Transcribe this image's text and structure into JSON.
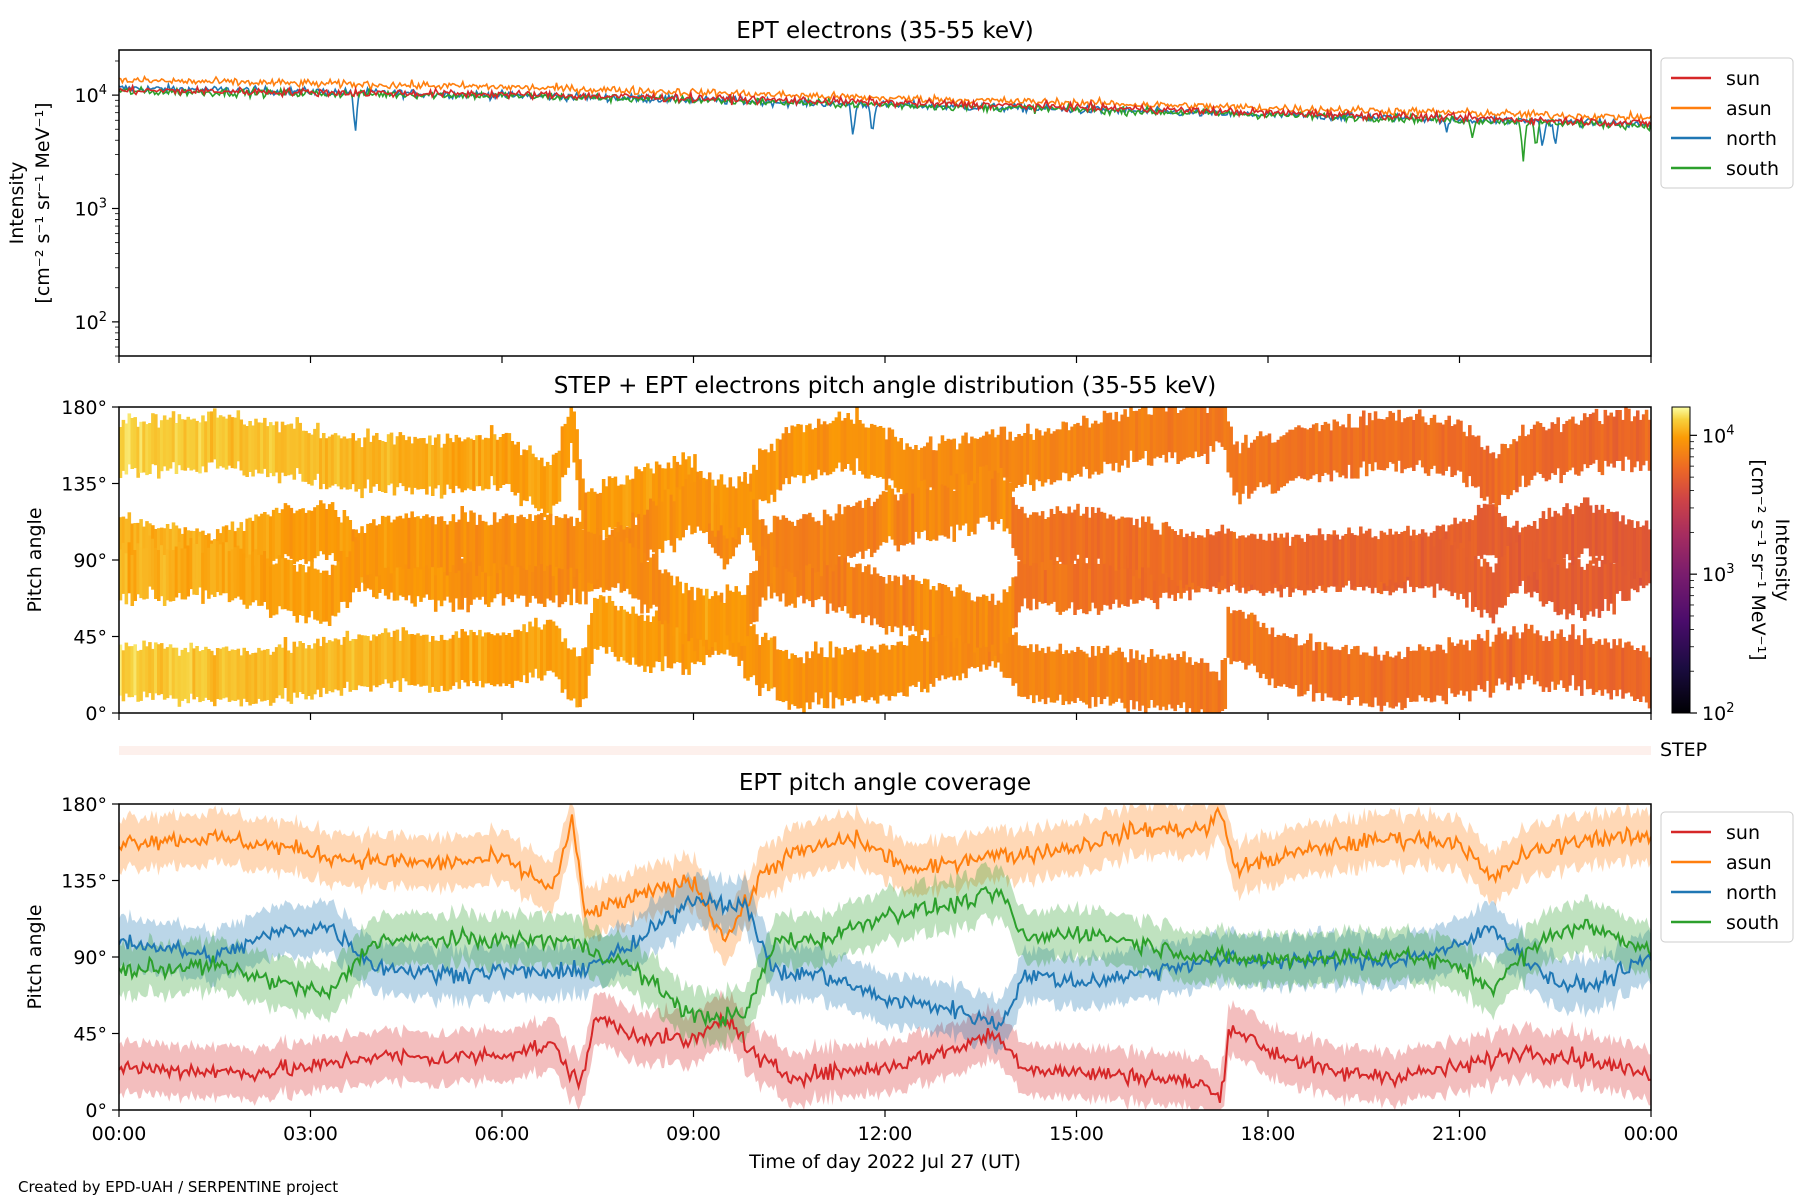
{
  "footer": "Created by EPD-UAH / SERPENTINE project",
  "colors": {
    "sun": "#d62728",
    "asun": "#ff7f0e",
    "north": "#1f77b4",
    "south": "#2ca02c"
  },
  "chart_data": [
    {
      "type": "line",
      "title": "EPT electrons (35-55 keV)",
      "ylabel_line1": "Intensity",
      "ylabel_line2": "[cm⁻² s⁻¹ sr⁻¹ MeV⁻¹]",
      "yscale": "log",
      "ylim": [
        50,
        25000
      ],
      "yticks": [
        {
          "value": 100,
          "base": "10",
          "exp": "2"
        },
        {
          "value": 1000,
          "base": "10",
          "exp": "3"
        },
        {
          "value": 10000,
          "base": "10",
          "exp": "4"
        }
      ],
      "legend": [
        "sun",
        "asun",
        "north",
        "south"
      ],
      "legend_position": "outside-right",
      "series": [
        {
          "name": "sun",
          "trend": [
            [
              0,
              11000
            ],
            [
              6,
              10200
            ],
            [
              12,
              8600
            ],
            [
              18,
              7000
            ],
            [
              24,
              5600
            ]
          ],
          "dips": []
        },
        {
          "name": "asun",
          "trend": [
            [
              0,
              13500
            ],
            [
              6,
              11800
            ],
            [
              12,
              9400
            ],
            [
              18,
              7700
            ],
            [
              24,
              6300
            ]
          ],
          "dips": []
        },
        {
          "name": "north",
          "trend": [
            [
              0,
              11500
            ],
            [
              6,
              10000
            ],
            [
              12,
              8200
            ],
            [
              18,
              6700
            ],
            [
              24,
              5500
            ]
          ],
          "dips": [
            [
              3.7,
              4200
            ],
            [
              11.5,
              4000
            ],
            [
              11.8,
              4300
            ],
            [
              20.8,
              4700
            ],
            [
              22.3,
              3300
            ],
            [
              22.5,
              3500
            ]
          ]
        },
        {
          "name": "south",
          "trend": [
            [
              0,
              10800
            ],
            [
              6,
              9900
            ],
            [
              12,
              8200
            ],
            [
              18,
              6700
            ],
            [
              24,
              5400
            ]
          ],
          "dips": [
            [
              21.2,
              4200
            ],
            [
              22.0,
              2600
            ],
            [
              22.2,
              3200
            ]
          ]
        }
      ]
    },
    {
      "type": "heatmap",
      "title": "STEP + EPT electrons pitch angle distribution (35-55 keV)",
      "ylabel": "Pitch angle",
      "ylim": [
        0,
        180
      ],
      "yticks": [
        "0°",
        "45°",
        "90°",
        "135°",
        "180°"
      ],
      "colorbar": {
        "label_line1": "Intensity",
        "label_line2": "[cm⁻² s⁻¹ sr⁻¹ MeV⁻¹]",
        "scale": "log",
        "range": [
          100,
          16000
        ],
        "colormap": "plasma-inferno",
        "ticks": [
          {
            "value": 100,
            "base": "10",
            "exp": "2"
          },
          {
            "value": 1000,
            "base": "10",
            "exp": "3"
          },
          {
            "value": 10000,
            "base": "10",
            "exp": "4"
          }
        ]
      },
      "value_trend": [
        [
          0,
          13000
        ],
        [
          6,
          10000
        ],
        [
          12,
          8500
        ],
        [
          18,
          6500
        ],
        [
          24,
          5500
        ]
      ]
    },
    {
      "type": "bar",
      "label": "STEP"
    },
    {
      "type": "area",
      "title": "EPT pitch angle coverage",
      "ylabel": "Pitch angle",
      "ylim": [
        0,
        180
      ],
      "yticks": [
        "0°",
        "45°",
        "90°",
        "135°",
        "180°"
      ],
      "xlabel": "Time of day 2022 Jul 27 (UT)",
      "xlim": [
        0,
        24
      ],
      "xticks": [
        "00:00",
        "03:00",
        "06:00",
        "09:00",
        "12:00",
        "15:00",
        "18:00",
        "21:00",
        "00:00"
      ],
      "legend": [
        "sun",
        "asun",
        "north",
        "south"
      ],
      "legend_position": "outside-right",
      "band_halfwidth_deg": 15,
      "series": [
        {
          "name": "sun",
          "points": [
            [
              0,
              25
            ],
            [
              2,
              22
            ],
            [
              3,
              25
            ],
            [
              4,
              32
            ],
            [
              5,
              30
            ],
            [
              6,
              33
            ],
            [
              6.8,
              38
            ],
            [
              7.2,
              15
            ],
            [
              7.5,
              55
            ],
            [
              8,
              45
            ],
            [
              9,
              40
            ],
            [
              9.5,
              55
            ],
            [
              10,
              30
            ],
            [
              10.5,
              20
            ],
            [
              12,
              25
            ],
            [
              13,
              35
            ],
            [
              13.7,
              45
            ],
            [
              14.2,
              25
            ],
            [
              15,
              22
            ],
            [
              16,
              20
            ],
            [
              17,
              15
            ],
            [
              17.25,
              5
            ],
            [
              17.4,
              50
            ],
            [
              18,
              35
            ],
            [
              19,
              22
            ],
            [
              20,
              20
            ],
            [
              21,
              25
            ],
            [
              22,
              35
            ],
            [
              23,
              30
            ],
            [
              24,
              20
            ]
          ]
        },
        {
          "name": "asun",
          "points": [
            [
              0,
              158
            ],
            [
              1.5,
              160
            ],
            [
              2.5,
              155
            ],
            [
              3.5,
              148
            ],
            [
              5,
              145
            ],
            [
              6,
              148
            ],
            [
              6.8,
              130
            ],
            [
              7.1,
              170
            ],
            [
              7.3,
              115
            ],
            [
              7.7,
              120
            ],
            [
              8.5,
              130
            ],
            [
              9,
              135
            ],
            [
              9.5,
              100
            ],
            [
              10.1,
              140
            ],
            [
              10.5,
              150
            ],
            [
              11.5,
              160
            ],
            [
              12.5,
              140
            ],
            [
              13.5,
              150
            ],
            [
              14.1,
              150
            ],
            [
              15,
              155
            ],
            [
              16,
              165
            ],
            [
              17,
              165
            ],
            [
              17.25,
              175
            ],
            [
              17.5,
              142
            ],
            [
              18.3,
              150
            ],
            [
              19,
              155
            ],
            [
              20,
              160
            ],
            [
              21,
              158
            ],
            [
              21.5,
              135
            ],
            [
              22,
              150
            ],
            [
              23,
              160
            ],
            [
              24,
              160
            ]
          ]
        },
        {
          "name": "north",
          "points": [
            [
              0,
              100
            ],
            [
              1.5,
              90
            ],
            [
              2.5,
              105
            ],
            [
              3.3,
              108
            ],
            [
              4,
              85
            ],
            [
              5,
              80
            ],
            [
              6,
              82
            ],
            [
              7,
              80
            ],
            [
              8,
              95
            ],
            [
              9,
              125
            ],
            [
              9.8,
              120
            ],
            [
              10.3,
              80
            ],
            [
              11,
              80
            ],
            [
              12,
              65
            ],
            [
              13,
              60
            ],
            [
              13.8,
              50
            ],
            [
              14.2,
              80
            ],
            [
              15,
              75
            ],
            [
              16,
              80
            ],
            [
              17,
              88
            ],
            [
              18,
              88
            ],
            [
              19,
              88
            ],
            [
              20,
              88
            ],
            [
              21,
              96
            ],
            [
              21.5,
              108
            ],
            [
              22,
              90
            ],
            [
              22.5,
              75
            ],
            [
              23,
              72
            ],
            [
              24,
              90
            ]
          ]
        },
        {
          "name": "south",
          "points": [
            [
              0,
              82
            ],
            [
              1.5,
              85
            ],
            [
              2.5,
              75
            ],
            [
              3.3,
              68
            ],
            [
              4,
              100
            ],
            [
              5,
              100
            ],
            [
              6,
              100
            ],
            [
              7,
              100
            ],
            [
              8,
              85
            ],
            [
              9,
              55
            ],
            [
              9.8,
              55
            ],
            [
              10.3,
              100
            ],
            [
              11,
              100
            ],
            [
              12,
              115
            ],
            [
              13,
              120
            ],
            [
              13.8,
              128
            ],
            [
              14.2,
              100
            ],
            [
              15,
              105
            ],
            [
              16,
              98
            ],
            [
              17,
              90
            ],
            [
              18,
              88
            ],
            [
              19,
              90
            ],
            [
              20,
              92
            ],
            [
              21,
              84
            ],
            [
              21.5,
              72
            ],
            [
              22,
              90
            ],
            [
              22.5,
              105
            ],
            [
              23,
              108
            ],
            [
              24,
              95
            ]
          ]
        }
      ]
    }
  ]
}
